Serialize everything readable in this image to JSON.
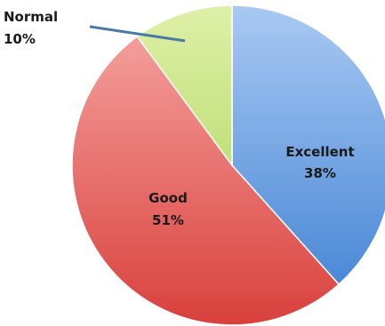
{
  "chart_data": {
    "type": "pie",
    "title": "",
    "slices": [
      {
        "label": "Excellent",
        "value": 38,
        "value_label": "38%",
        "color_top": "#a9c9f3",
        "color_bottom": "#3c7fd2"
      },
      {
        "label": "Good",
        "value": 51,
        "value_label": "51%",
        "color_top": "#f7a8a5",
        "color_bottom": "#d9403c"
      },
      {
        "label": "Normal",
        "value": 10,
        "value_label": "10%",
        "color_top": "#dff0a8",
        "color_bottom": "#a2cf4a"
      }
    ],
    "start_angle": "12 o'clock",
    "direction": "clockwise",
    "legend": "none"
  }
}
